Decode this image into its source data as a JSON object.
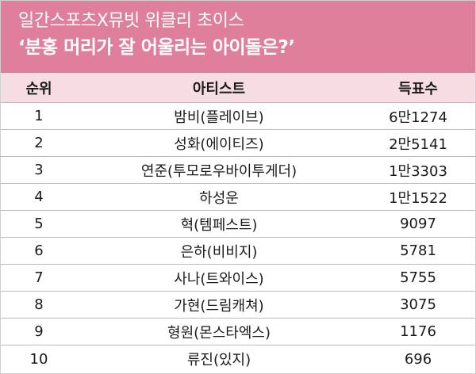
{
  "header": {
    "kicker": "일간스포츠X뮤빗 위클리 초이스",
    "headline": "‘분홍 머리가 잘 어울리는 아이돌은?’"
  },
  "table": {
    "columns": {
      "rank": "순위",
      "artist": "아티스트",
      "votes": "득표수"
    },
    "rows": [
      {
        "rank": "1",
        "artist": "밤비(플레이브)",
        "votes": "6만1274"
      },
      {
        "rank": "2",
        "artist": "성화(에이티즈)",
        "votes": "2만5141"
      },
      {
        "rank": "3",
        "artist": "연준(투모로우바이투게더)",
        "votes": "1만3303"
      },
      {
        "rank": "4",
        "artist": "하성운",
        "votes": "1만1522"
      },
      {
        "rank": "5",
        "artist": "혁(템페스트)",
        "votes": "9097"
      },
      {
        "rank": "6",
        "artist": "은하(비비지)",
        "votes": "5781"
      },
      {
        "rank": "7",
        "artist": "사나(트와이스)",
        "votes": "5755"
      },
      {
        "rank": "8",
        "artist": "가현(드림캐쳐)",
        "votes": "3075"
      },
      {
        "rank": "9",
        "artist": "형원(몬스타엑스)",
        "votes": "1176"
      },
      {
        "rank": "10",
        "artist": "류진(있지)",
        "votes": "696"
      }
    ]
  }
}
